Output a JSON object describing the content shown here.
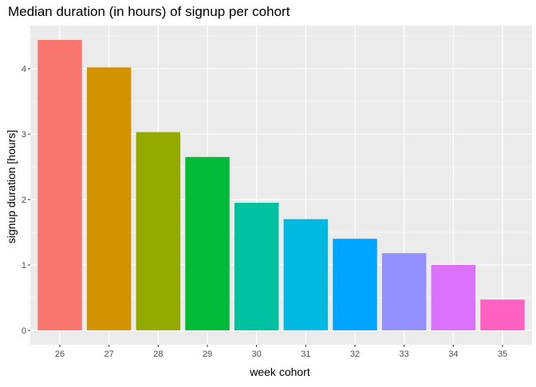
{
  "chart_data": {
    "type": "bar",
    "title": "Median duration (in hours) of signup per cohort",
    "xlabel": "week cohort",
    "ylabel": "signup duration [hours]",
    "categories": [
      "26",
      "27",
      "28",
      "29",
      "30",
      "31",
      "32",
      "33",
      "34",
      "35"
    ],
    "values": [
      4.44,
      4.02,
      3.03,
      2.65,
      1.95,
      1.7,
      1.4,
      1.18,
      1.0,
      0.47
    ],
    "colors": [
      "#F8766D",
      "#D39200",
      "#93AA00",
      "#00BA38",
      "#00C19F",
      "#00B9E3",
      "#00A5FF",
      "#9590FF",
      "#DB72FB",
      "#FF61C3"
    ],
    "ylim": [
      -0.22,
      4.66
    ],
    "yticks": [
      "0",
      "1",
      "2",
      "3",
      "4"
    ],
    "grid": true,
    "legend": "none",
    "panel_background": "#EBEBEB",
    "gridline_color": "#FFFFFF"
  }
}
